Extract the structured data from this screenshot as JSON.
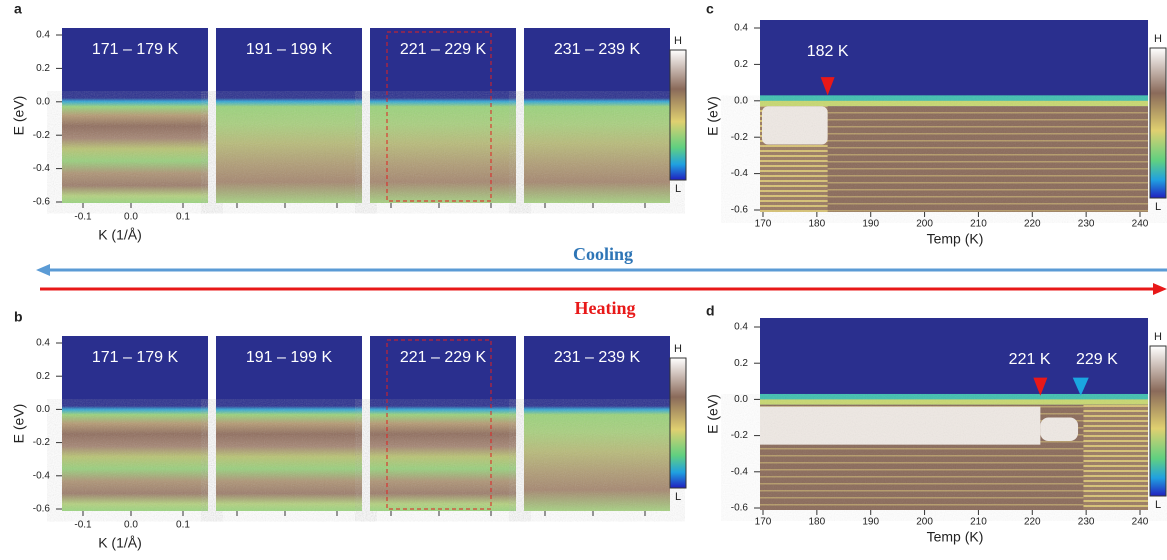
{
  "panels": {
    "a": {
      "label": "a",
      "titles": [
        "171 – 179 K",
        "191 – 199 K",
        "221 – 229 K",
        "231 – 239 K"
      ],
      "yticks": [
        "0.4",
        "0.2",
        "0.0",
        "-0.2",
        "-0.4",
        "-0.6"
      ],
      "xticks": [
        "-0.1",
        "0.0",
        "0.1"
      ],
      "ylabel": "E (eV)",
      "xlabel": "K (1/Å)",
      "colorbar": {
        "high": "H",
        "low": "L"
      }
    },
    "b": {
      "label": "b",
      "titles": [
        "171 – 179 K",
        "191 – 199 K",
        "221 – 229 K",
        "231 – 239 K"
      ],
      "yticks": [
        "0.4",
        "0.2",
        "0.0",
        "-0.2",
        "-0.4",
        "-0.6"
      ],
      "xticks": [
        "-0.1",
        "0.0",
        "0.1"
      ],
      "ylabel": "E (eV)",
      "xlabel": "K (1/Å)",
      "colorbar": {
        "high": "H",
        "low": "L"
      }
    },
    "c": {
      "label": "c",
      "yticks": [
        "0.4",
        "0.2",
        "0.0",
        "-0.2",
        "-0.4",
        "-0.6"
      ],
      "xticks": [
        "170",
        "180",
        "190",
        "200",
        "210",
        "220",
        "230",
        "240"
      ],
      "ylabel": "E (eV)",
      "xlabel": "Temp (K)",
      "annotations": [
        "182 K"
      ],
      "colorbar": {
        "high": "H",
        "low": "L"
      }
    },
    "d": {
      "label": "d",
      "yticks": [
        "0.4",
        "0.2",
        "0.0",
        "-0.2",
        "-0.4",
        "-0.6"
      ],
      "xticks": [
        "170",
        "180",
        "190",
        "200",
        "210",
        "220",
        "230",
        "240"
      ],
      "ylabel": "E (eV)",
      "xlabel": "Temp (K)",
      "annotations": [
        "221 K",
        "229 K"
      ],
      "colorbar": {
        "high": "H",
        "low": "L"
      }
    }
  },
  "arrows": {
    "cooling": "Cooling",
    "heating": "Heating"
  }
}
